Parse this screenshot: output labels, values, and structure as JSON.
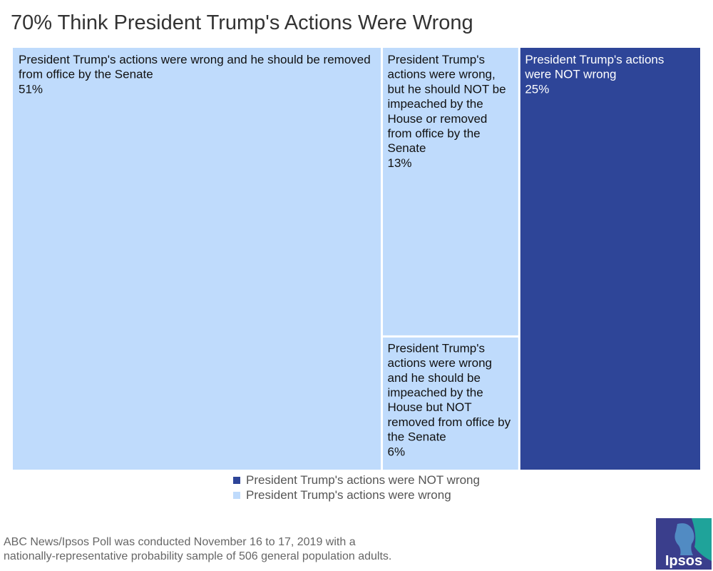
{
  "chart_data": {
    "type": "treemap",
    "title": "70% Think President Trump's Actions Were Wrong",
    "groups": [
      {
        "name": "President Trump's actions were wrong",
        "color": "#bfdbfc",
        "items": [
          {
            "label": "President Trump's actions were wrong and he should be removed from office by the Senate",
            "value": 51,
            "display": "51%"
          },
          {
            "label": "President Trump's actions were wrong, but he should NOT be impeached by the House or removed from office by the Senate",
            "value": 13,
            "display": "13%"
          },
          {
            "label": "President Trump's actions were wrong and he should be impeached by the House but NOT removed from office by the Senate",
            "value": 6,
            "display": "6%"
          }
        ]
      },
      {
        "name": "President Trump's actions were NOT wrong",
        "color": "#2e4598",
        "items": [
          {
            "label": "President Trump's actions were NOT wrong",
            "value": 25,
            "display": "25%"
          }
        ]
      }
    ],
    "legend": [
      {
        "label": "President Trump's actions were NOT wrong",
        "color": "#2e4598"
      },
      {
        "label": "President Trump's actions were wrong",
        "color": "#bfdbfc"
      }
    ],
    "legend_position": "bottom"
  },
  "footnote": {
    "line1": "ABC News/Ipsos Poll was conducted November 16 to 17, 2019  with a",
    "line2": "nationally-representative probability sample of 506 general population adults."
  },
  "logo": {
    "text": "Ipsos"
  }
}
